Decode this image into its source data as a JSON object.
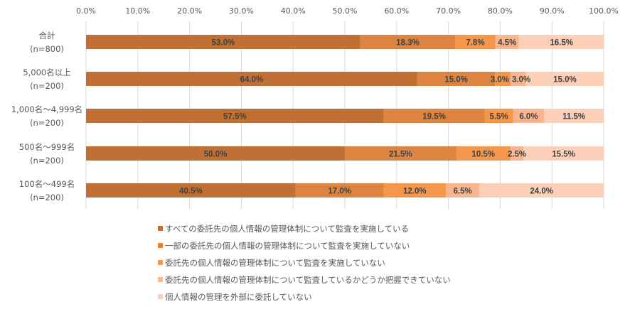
{
  "chart_data": {
    "type": "bar",
    "orientation": "horizontal",
    "stacked": true,
    "title": "",
    "xlabel": "",
    "ylabel": "",
    "xlim": [
      0,
      100
    ],
    "x_ticks": [
      "0.0%",
      "10.0%",
      "20.0%",
      "30.0%",
      "40.0%",
      "50.0%",
      "60.0%",
      "70.0%",
      "80.0%",
      "90.0%",
      "100.0%"
    ],
    "grid": true,
    "legend_position": "bottom",
    "categories": [
      {
        "name": "合計",
        "n": "(n=800)"
      },
      {
        "name": "5,000名以上",
        "n": "(n=200)"
      },
      {
        "name": "1,000名～4,999名",
        "n": "(n=200)"
      },
      {
        "name": "500名～999名",
        "n": "(n=200)"
      },
      {
        "name": "100名～499名",
        "n": "(n=200)"
      }
    ],
    "series": [
      {
        "name": "すべての委託先の個人情報の管理体制について監査を実施している",
        "color": "#C07035",
        "values": [
          53.0,
          64.0,
          57.5,
          50.0,
          40.5
        ]
      },
      {
        "name": "一部の委託先の個人情報の管理体制について監査を実施していない",
        "color": "#DC8440",
        "values": [
          18.3,
          15.0,
          19.5,
          21.5,
          17.0
        ]
      },
      {
        "name": "委託先の個人情報の管理体制について監査を実施していない",
        "color": "#F4974A",
        "values": [
          7.8,
          3.0,
          5.5,
          10.5,
          12.0
        ]
      },
      {
        "name": "委託先の個人情報の管理体制について監査しているかどうか把握できていない",
        "color": "#F8B58E",
        "values": [
          4.5,
          3.0,
          6.0,
          2.5,
          6.5
        ]
      },
      {
        "name": "個人情報の管理を外部に委託していない",
        "color": "#FCCFB8",
        "values": [
          16.5,
          15.0,
          11.5,
          15.5,
          24.0
        ]
      }
    ]
  }
}
